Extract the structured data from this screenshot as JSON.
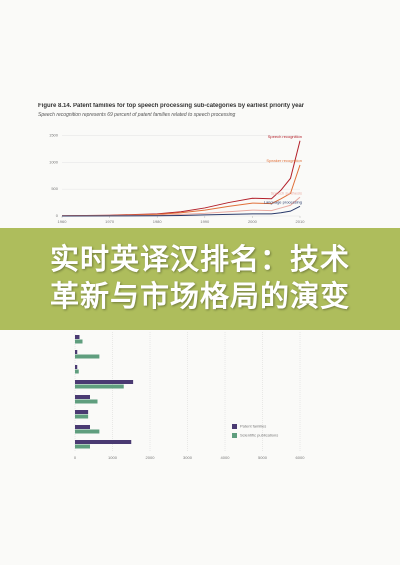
{
  "figure_title": "Figure 8.14. Patent families for top speech processing sub-categories by earliest priority year",
  "figure_subtitle": "Speech recognition represents 69 percent of patent families related to speech processing",
  "banner": {
    "title": "实时英译汉排名：技术革新与市场格局的演变"
  },
  "chart_data": [
    {
      "type": "line",
      "x": [
        1960,
        1970,
        1980,
        1985,
        1990,
        1995,
        2000,
        2004,
        2006,
        2008,
        2010
      ],
      "xlim": [
        1960,
        2010
      ],
      "xticks": [
        1960,
        1970,
        1980,
        1990,
        2000,
        2010
      ],
      "ylim": [
        0,
        1600
      ],
      "yticks": [
        0,
        500,
        1000,
        1500
      ],
      "grid": true,
      "series": [
        {
          "name": "Speech recognition",
          "color": "#b3202a",
          "values": [
            5,
            15,
            40,
            80,
            150,
            250,
            330,
            320,
            480,
            700,
            1400
          ]
        },
        {
          "name": "Speaker recognition",
          "color": "#e0703a",
          "values": [
            3,
            10,
            30,
            60,
            110,
            180,
            240,
            230,
            320,
            420,
            950
          ]
        },
        {
          "name": "Speech synthesis",
          "color": "#e9a9a0",
          "values": [
            2,
            5,
            15,
            30,
            50,
            80,
            110,
            100,
            150,
            200,
            350
          ]
        },
        {
          "name": "Language processing",
          "color": "#2a3a6a",
          "values": [
            0,
            2,
            5,
            10,
            20,
            30,
            40,
            40,
            60,
            90,
            180
          ]
        }
      ]
    },
    {
      "type": "hbar",
      "categories": [
        null,
        null,
        null,
        null,
        null,
        null,
        null,
        null
      ],
      "xlim": [
        0,
        6000
      ],
      "xticks": [
        0,
        1000,
        2000,
        3000,
        4000,
        5000,
        6000
      ],
      "grid": true,
      "series": [
        {
          "name": "Patent families",
          "color": "#4a3a72",
          "values": [
            120,
            60,
            60,
            1550,
            400,
            350,
            400,
            1500
          ]
        },
        {
          "name": "Scientific publications",
          "color": "#5f9e7e",
          "values": [
            200,
            650,
            100,
            1300,
            600,
            350,
            650,
            400
          ]
        }
      ]
    }
  ]
}
